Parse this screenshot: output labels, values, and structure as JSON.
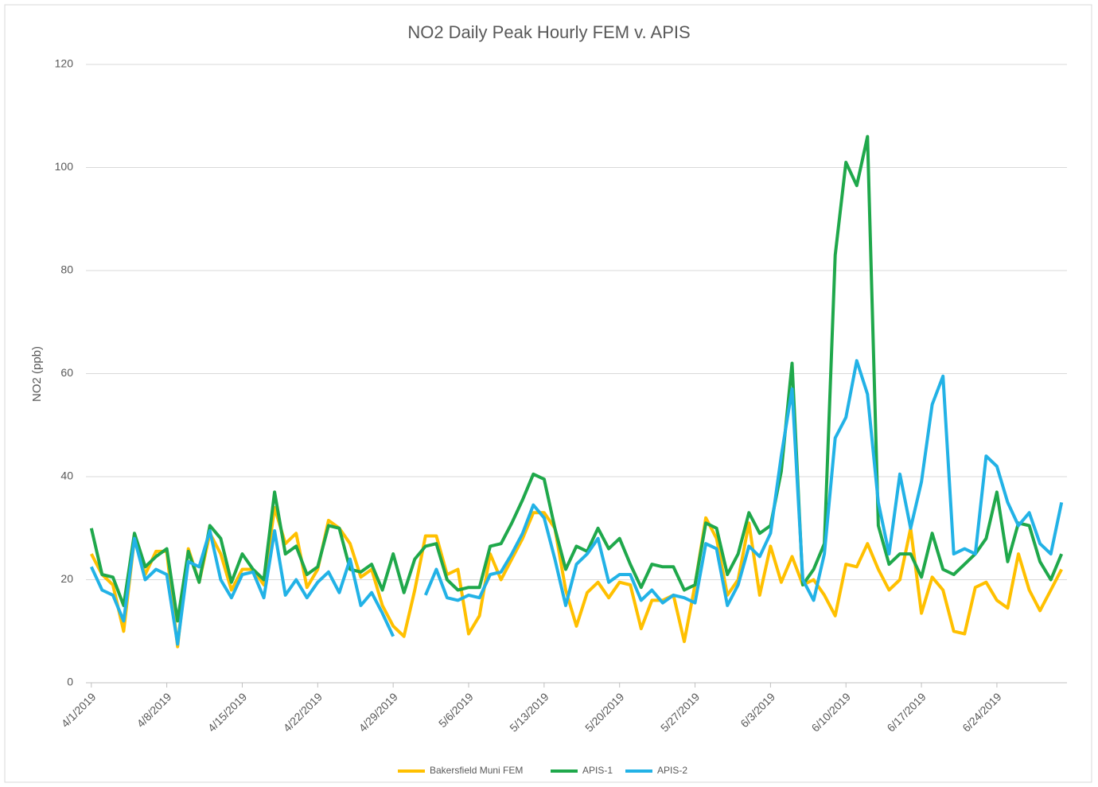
{
  "chart_data": {
    "type": "line",
    "title": "NO2 Daily Peak Hourly FEM v. APIS",
    "ylabel": "NO2 (ppb)",
    "categories": [
      "4/1/2019",
      null,
      null,
      null,
      null,
      null,
      null,
      "4/8/2019",
      null,
      null,
      null,
      null,
      null,
      null,
      "4/15/2019",
      null,
      null,
      null,
      null,
      null,
      null,
      "4/22/2019",
      null,
      null,
      null,
      null,
      null,
      null,
      "4/29/2019",
      null,
      null,
      null,
      null,
      null,
      null,
      "5/6/2019",
      null,
      null,
      null,
      null,
      null,
      null,
      "5/13/2019",
      null,
      null,
      null,
      null,
      null,
      null,
      "5/20/2019",
      null,
      null,
      null,
      null,
      null,
      null,
      "5/27/2019",
      null,
      null,
      null,
      null,
      null,
      null,
      "6/3/2019",
      null,
      null,
      null,
      null,
      null,
      null,
      "6/10/2019",
      null,
      null,
      null,
      null,
      null,
      null,
      "6/17/2019",
      null,
      null,
      null,
      null,
      null,
      null,
      "6/24/2019",
      null,
      null,
      null,
      null,
      null,
      null
    ],
    "series": [
      {
        "name": "Bakersfield Muni FEM",
        "color": "#ffc000",
        "values": [
          25,
          21,
          19,
          10,
          28,
          21,
          25.5,
          25.5,
          7,
          26,
          19.5,
          29,
          25,
          18,
          22,
          22,
          19,
          34,
          27,
          29,
          18.5,
          22,
          31.5,
          30,
          27,
          20.5,
          22,
          15,
          11,
          9,
          18,
          28.5,
          28.5,
          21,
          22,
          9.5,
          13,
          25,
          20,
          24,
          28,
          33,
          33,
          30,
          18,
          11,
          17.5,
          19.5,
          16.5,
          19.5,
          19,
          10.5,
          16,
          16,
          17,
          8,
          19,
          32,
          28,
          17,
          20,
          31,
          17,
          26.5,
          19.5,
          24.5,
          19,
          20,
          17,
          13,
          23,
          22.5,
          27,
          22,
          18,
          20,
          30,
          13.5,
          20.5,
          18,
          10,
          9.5,
          18.5,
          19.5,
          16,
          14.5,
          25,
          18,
          14,
          18,
          22
        ]
      },
      {
        "name": "APIS-1",
        "color": "#1fa84b",
        "values": [
          30,
          21,
          20.5,
          15,
          29,
          22.5,
          24.5,
          26,
          12,
          25.5,
          19.5,
          30.5,
          28,
          19.5,
          25,
          22,
          20,
          37,
          25,
          26.5,
          21,
          22.5,
          30.5,
          30,
          22,
          21.5,
          23,
          18,
          25,
          17.5,
          24,
          26.5,
          27,
          20,
          18,
          18.5,
          18.5,
          26.5,
          27,
          31,
          35.5,
          40.5,
          39.5,
          30,
          22,
          26.5,
          25.5,
          30,
          26,
          28,
          23,
          18.5,
          23,
          22.5,
          22.5,
          18,
          19,
          31,
          30,
          21,
          25,
          33,
          29,
          30.5,
          41,
          62,
          19,
          22,
          27,
          83,
          101,
          96.5,
          106,
          30.5,
          23,
          25,
          25,
          20.5,
          29,
          22,
          21,
          23,
          25,
          28,
          37,
          23.5,
          31,
          30.5,
          23.5,
          20,
          25
        ]
      },
      {
        "name": "APIS-2",
        "color": "#22b2e6",
        "values": [
          22.5,
          18,
          17,
          12,
          28,
          20,
          22,
          21,
          7.5,
          23.5,
          22.5,
          29.5,
          20,
          16.5,
          21,
          21.5,
          16.5,
          29.5,
          17,
          20,
          16.5,
          19.5,
          21.5,
          17.5,
          24,
          15,
          17.5,
          13.5,
          9,
          null,
          null,
          17,
          22,
          16.5,
          16,
          17,
          16.5,
          21,
          21.5,
          25,
          29,
          34.5,
          32,
          24,
          15,
          23,
          25,
          28,
          19.5,
          21,
          21,
          16,
          18,
          15.5,
          17,
          16.5,
          15.5,
          27,
          26,
          15,
          19,
          26.5,
          24.5,
          29,
          44,
          57,
          20,
          16,
          25,
          47.5,
          51.5,
          62.5,
          56,
          35,
          25,
          40.5,
          30,
          39,
          54,
          59.5,
          25,
          26,
          25,
          44,
          42,
          35,
          30.5,
          33,
          27,
          25,
          35
        ]
      }
    ],
    "ylim": [
      0,
      120
    ],
    "yticks": [
      0,
      20,
      40,
      60,
      80,
      100,
      120
    ],
    "grid": true,
    "legend": "bottom"
  }
}
